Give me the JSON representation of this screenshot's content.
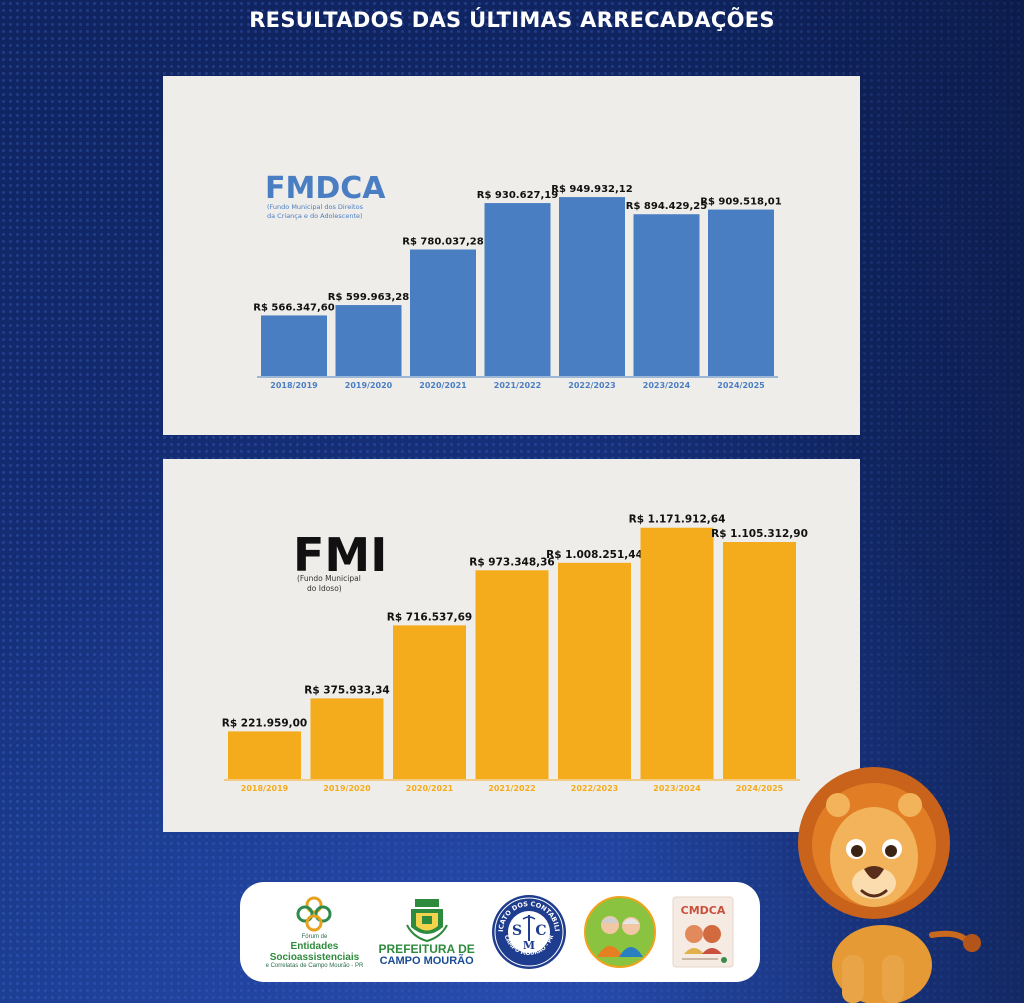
{
  "page_title": "RESULTADOS DAS ÚLTIMAS ARRECADAÇÕES",
  "colors": {
    "fmdca_bar": "#4a7ec3",
    "fmi_bar": "#f4ab1c",
    "panel_bg": "#efedea"
  },
  "chart_data": [
    {
      "type": "bar",
      "title": "FMDCA",
      "subtitle_lines": [
        "(Fundo Municipal dos Direitos",
        "da Criança e do Adolescente)"
      ],
      "categories": [
        "2018/2019",
        "2019/2020",
        "2020/2021",
        "2021/2022",
        "2022/2023",
        "2023/2024",
        "2024/2025"
      ],
      "values": [
        566347.6,
        599963.28,
        780037.28,
        930627.19,
        949932.12,
        894429.25,
        909518.01
      ],
      "labels": [
        "R$ 566.347,60",
        "R$ 599.963,28",
        "R$ 780.037,28",
        "R$ 930.627,19",
        "R$ 949.932,12",
        "R$ 894.429,25",
        "R$ 909.518,01"
      ],
      "ylim": [
        370000,
        960000
      ],
      "grid": false,
      "color": "#4a7ec3"
    },
    {
      "type": "bar",
      "title": "FMI",
      "subtitle_lines": [
        "(Fundo Municipal",
        "do Idoso)"
      ],
      "categories": [
        "2018/2019",
        "2019/2020",
        "2020/2021",
        "2021/2022",
        "2022/2023",
        "2023/2024",
        "2024/2025"
      ],
      "values": [
        221959.0,
        375933.34,
        716537.69,
        973348.36,
        1008251.44,
        1171912.64,
        1105312.9
      ],
      "labels": [
        "R$ 221.959,00",
        "R$ 375.933,34",
        "R$ 716.537,69",
        "R$ 973.348,36",
        "R$ 1.008.251,44",
        "R$ 1.171.912,64",
        "R$ 1.105.312,90"
      ],
      "ylim": [
        0,
        1180000
      ],
      "grid": false,
      "color": "#f4ab1c"
    }
  ],
  "logos": {
    "forum": {
      "line1": "Fórum de",
      "line2": "Entidades",
      "line3": "Socioassistenciais",
      "line4": "e Correlatas de Campo Mourão - PR"
    },
    "prefeitura": {
      "line1": "PREFEITURA DE",
      "line2": "CAMPO MOURÃO"
    },
    "sindicato": {
      "ring_text": "SINDICATO DOS CONTABILISTAS",
      "bottom_text": "CAMPO MOURÃO - PR",
      "s": "S",
      "c": "C",
      "m": "M"
    },
    "cmdca": {
      "text": "CMDCA"
    }
  }
}
